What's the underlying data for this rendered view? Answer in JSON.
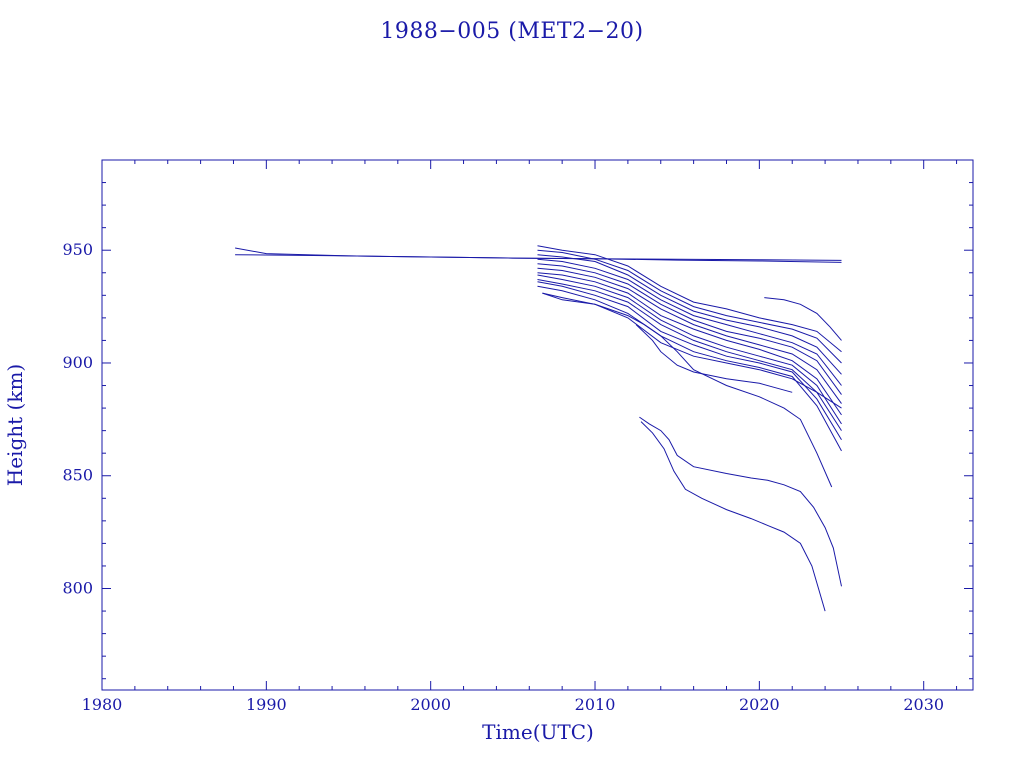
{
  "chart_data": {
    "type": "line",
    "title": "1988−005 (MET2−20)",
    "xlabel": "Time(UTC)",
    "ylabel": "Height (km)",
    "xlim": [
      1980,
      2033
    ],
    "ylim": [
      755,
      990
    ],
    "x_ticks": [
      1980,
      1990,
      2000,
      2010,
      2020,
      2030
    ],
    "y_ticks": [
      800,
      850,
      900,
      950
    ],
    "colors": {
      "ink": "#1a1aa8",
      "series": "#1a1aa8"
    },
    "series": [
      {
        "x": [
          1988.1,
          1990,
          1995,
          2000,
          2005,
          2010,
          2015,
          2020,
          2025
        ],
        "y": [
          951,
          948.5,
          947.5,
          947,
          946.5,
          946.2,
          945.6,
          945.2,
          944.6
        ]
      },
      {
        "x": [
          1988.1,
          1995,
          2000,
          2005,
          2010,
          2015,
          2020,
          2025
        ],
        "y": [
          948,
          947.5,
          947,
          946.5,
          946.2,
          946,
          945.8,
          945.5
        ]
      },
      {
        "x": [
          2006.5,
          2008,
          2010,
          2012,
          2014,
          2016,
          2018,
          2020,
          2022,
          2023.5,
          2025
        ],
        "y": [
          952,
          950,
          948,
          943,
          934,
          927,
          924,
          920,
          917,
          914,
          905
        ]
      },
      {
        "x": [
          2006.5,
          2008,
          2010,
          2012,
          2014,
          2016,
          2018,
          2020,
          2022,
          2023.5,
          2025
        ],
        "y": [
          950,
          949,
          946,
          941,
          932,
          925,
          921,
          918,
          915,
          911,
          900
        ]
      },
      {
        "x": [
          2006.5,
          2008,
          2010,
          2012,
          2014,
          2016,
          2018,
          2020,
          2022,
          2023.5,
          2025
        ],
        "y": [
          948,
          947,
          945,
          939,
          930,
          923,
          919,
          916,
          912,
          907,
          895
        ]
      },
      {
        "x": [
          2006.5,
          2008,
          2010,
          2012,
          2014,
          2016,
          2018,
          2020,
          2022,
          2023.5,
          2025
        ],
        "y": [
          946,
          945,
          942,
          937,
          928,
          921,
          917,
          913,
          909,
          904,
          890
        ]
      },
      {
        "x": [
          2006.5,
          2008,
          2010,
          2012,
          2014,
          2016,
          2018,
          2020,
          2022,
          2023.5,
          2025
        ],
        "y": [
          944,
          943,
          940,
          935,
          926,
          919,
          914,
          911,
          907,
          901,
          886
        ]
      },
      {
        "x": [
          2006.5,
          2008,
          2010,
          2012,
          2014,
          2016,
          2018,
          2020,
          2022,
          2023.5,
          2025
        ],
        "y": [
          942,
          941,
          938,
          933,
          924,
          917,
          912,
          908,
          904,
          897,
          882
        ]
      },
      {
        "x": [
          2006.5,
          2008,
          2010,
          2012,
          2014,
          2016,
          2018,
          2020,
          2022,
          2023.5,
          2025
        ],
        "y": [
          940,
          939,
          936,
          931,
          921,
          915,
          910,
          906,
          901,
          893,
          877
        ]
      },
      {
        "x": [
          2006.5,
          2008,
          2010,
          2012,
          2014,
          2016,
          2018,
          2020,
          2022,
          2023.5,
          2025
        ],
        "y": [
          939,
          937,
          934,
          929,
          919,
          912,
          907,
          903,
          899,
          890,
          873
        ]
      },
      {
        "x": [
          2006.5,
          2008,
          2010,
          2012,
          2014,
          2016,
          2018,
          2020,
          2022,
          2023.5,
          2025
        ],
        "y": [
          937,
          935,
          932,
          927,
          917,
          910,
          905,
          901,
          897,
          887,
          870
        ]
      },
      {
        "x": [
          2006.5,
          2008,
          2010,
          2012,
          2014,
          2016,
          2018,
          2020,
          2022,
          2023.5,
          2025
        ],
        "y": [
          936,
          934,
          930,
          925,
          914,
          908,
          903,
          900,
          896,
          884,
          866
        ]
      },
      {
        "x": [
          2006.5,
          2008,
          2010,
          2012,
          2014,
          2016,
          2018,
          2020,
          2022,
          2023.5,
          2025
        ],
        "y": [
          934,
          932,
          928,
          922,
          912,
          905,
          901,
          898,
          894,
          881,
          861
        ]
      },
      {
        "x": [
          2006.8,
          2008,
          2010,
          2012,
          2014,
          2016,
          2018,
          2020,
          2022,
          2023.5,
          2025
        ],
        "y": [
          931,
          929,
          926,
          920,
          909,
          903,
          900,
          897,
          893,
          887,
          880
        ]
      },
      {
        "x": [
          2006.8,
          2008,
          2010,
          2012,
          2013,
          2014,
          2015,
          2016,
          2018,
          2020,
          2021.5,
          2022.5,
          2023.5,
          2024.4
        ],
        "y": [
          931,
          928,
          926,
          921,
          917,
          912,
          905,
          897,
          890,
          885,
          880,
          875,
          860,
          845
        ]
      },
      {
        "x": [
          2012.5,
          2013.5,
          2014,
          2015,
          2016,
          2018,
          2020,
          2021,
          2022
        ],
        "y": [
          917,
          910,
          905,
          899,
          896,
          893,
          891,
          889,
          887
        ]
      },
      {
        "x": [
          2020.3,
          2021.5,
          2022.5,
          2023.5,
          2024.3,
          2025
        ],
        "y": [
          929,
          928,
          926,
          922,
          916,
          910
        ]
      },
      {
        "x": [
          2012.7,
          2013.3,
          2014,
          2014.5,
          2015,
          2016,
          2018,
          2019.5,
          2020.5,
          2021.5,
          2022.5,
          2023.3,
          2024,
          2024.5,
          2025
        ],
        "y": [
          876,
          873,
          870,
          866,
          859,
          854,
          851,
          849,
          848,
          846,
          843,
          836,
          827,
          818,
          801
        ]
      },
      {
        "x": [
          2012.8,
          2013.5,
          2014.2,
          2014.8,
          2015.5,
          2016.5,
          2018,
          2019.5,
          2020.5,
          2021.5,
          2022.5,
          2023.2,
          2023.6,
          2024
        ],
        "y": [
          874,
          869,
          862,
          852,
          844,
          840,
          835,
          831,
          828,
          825,
          820,
          810,
          800,
          790
        ]
      }
    ]
  }
}
